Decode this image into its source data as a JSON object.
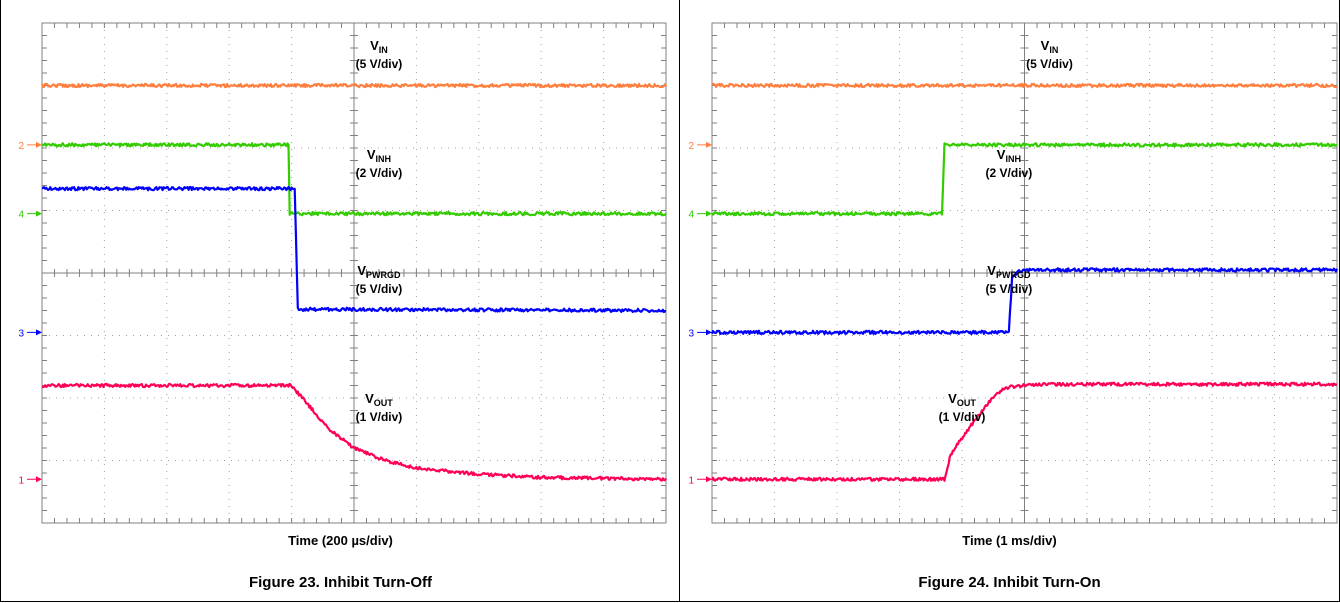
{
  "chart_data": [
    {
      "type": "line",
      "caption": "Figure 23. Inhibit Turn-Off",
      "xlabel": "Time (200 µs/div)",
      "x_divisions": 10,
      "y_divisions": 8,
      "grid": true,
      "channel_markers": [
        {
          "label": "2",
          "div_from_top": 1.95,
          "color": "#ff7f3f"
        },
        {
          "label": "4",
          "div_from_top": 3.05,
          "color": "#33cc00"
        },
        {
          "label": "3",
          "div_from_top": 4.95,
          "color": "#0000ff"
        },
        {
          "label": "1",
          "div_from_top": 7.3,
          "color": "#ff0055"
        }
      ],
      "series": [
        {
          "color": "#ff7f3f",
          "points": [
            [
              0,
              1.0
            ],
            [
              10,
              1.0
            ]
          ]
        },
        {
          "color": "#33cc00",
          "points": [
            [
              0,
              1.95
            ],
            [
              3.95,
              1.95
            ],
            [
              3.97,
              3.05
            ],
            [
              10,
              3.05
            ]
          ]
        },
        {
          "color": "#0000ff",
          "points": [
            [
              0,
              2.65
            ],
            [
              4.05,
              2.65
            ],
            [
              4.1,
              4.58
            ],
            [
              10,
              4.6
            ]
          ]
        },
        {
          "color": "#ff0055",
          "points": [
            [
              0,
              5.8
            ],
            [
              4.0,
              5.8
            ],
            [
              4.3,
              6.15
            ],
            [
              4.6,
              6.5
            ],
            [
              5.0,
              6.8
            ],
            [
              5.5,
              7.0
            ],
            [
              6.0,
              7.12
            ],
            [
              7.0,
              7.22
            ],
            [
              8.0,
              7.27
            ],
            [
              10,
              7.3
            ]
          ]
        }
      ],
      "annotations": [
        {
          "main": "V",
          "sub": "IN",
          "div": "(5 V/div)",
          "x_div": 5.4,
          "y_div": 0.3
        },
        {
          "main": "V",
          "sub": "INH",
          "div": "(2 V/div)",
          "x_div": 5.4,
          "y_div": 2.05
        },
        {
          "main": "V",
          "sub": "PWRGD",
          "div": "(5 V/div)",
          "x_div": 5.4,
          "y_div": 3.9
        },
        {
          "main": "V",
          "sub": "OUT",
          "div": "(1 V/div)",
          "x_div": 5.4,
          "y_div": 5.95
        }
      ]
    },
    {
      "type": "line",
      "caption": "Figure 24. Inhibit Turn-On",
      "xlabel": "Time (1 ms/div)",
      "x_divisions": 10,
      "y_divisions": 8,
      "grid": true,
      "channel_markers": [
        {
          "label": "2",
          "div_from_top": 1.95,
          "color": "#ff7f3f"
        },
        {
          "label": "4",
          "div_from_top": 3.05,
          "color": "#33cc00"
        },
        {
          "label": "3",
          "div_from_top": 4.95,
          "color": "#0000ff"
        },
        {
          "label": "1",
          "div_from_top": 7.3,
          "color": "#ff0055"
        }
      ],
      "series": [
        {
          "color": "#ff7f3f",
          "points": [
            [
              0,
              1.0
            ],
            [
              10,
              1.0
            ]
          ]
        },
        {
          "color": "#33cc00",
          "points": [
            [
              0,
              3.05
            ],
            [
              3.68,
              3.05
            ],
            [
              3.72,
              1.95
            ],
            [
              10,
              1.95
            ]
          ]
        },
        {
          "color": "#0000ff",
          "points": [
            [
              0,
              4.95
            ],
            [
              4.75,
              4.95
            ],
            [
              4.8,
              4.1
            ],
            [
              4.88,
              3.98
            ],
            [
              5.1,
              3.95
            ],
            [
              10,
              3.95
            ]
          ]
        },
        {
          "color": "#ff0055",
          "points": [
            [
              0,
              7.3
            ],
            [
              3.72,
              7.3
            ],
            [
              3.82,
              6.9
            ],
            [
              4.1,
              6.5
            ],
            [
              4.4,
              6.1
            ],
            [
              4.65,
              5.85
            ],
            [
              4.8,
              5.82
            ],
            [
              5.2,
              5.78
            ],
            [
              10,
              5.78
            ]
          ]
        }
      ],
      "annotations": [
        {
          "main": "V",
          "sub": "IN",
          "div": "(5 V/div)",
          "x_div": 5.4,
          "y_div": 0.3
        },
        {
          "main": "V",
          "sub": "INH",
          "div": "(2 V/div)",
          "x_div": 4.75,
          "y_div": 2.05
        },
        {
          "main": "V",
          "sub": "PWRGD",
          "div": "(5 V/div)",
          "x_div": 4.75,
          "y_div": 3.9
        },
        {
          "main": "V",
          "sub": "OUT",
          "div": "(1 V/div)",
          "x_div": 4.0,
          "y_div": 5.95
        }
      ]
    }
  ]
}
